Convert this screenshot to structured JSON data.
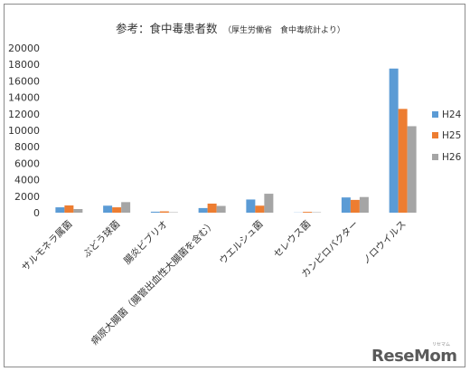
{
  "chart_data": {
    "type": "bar",
    "title": "参考：食中毒患者数",
    "subtitle": "（厚生労働省　食中毒統計より）",
    "categories": [
      "サルモネラ属菌",
      "ぶどう球菌",
      "腸炎ビブリオ",
      "病原大腸菌（腸管出血性大腸菌を含む）",
      "ウエルシュ菌",
      "セレウス菌",
      "カンピロバクター",
      "ノロウイルス"
    ],
    "series": [
      {
        "name": "H24",
        "color": "#5b9bd5",
        "values": [
          650,
          850,
          120,
          560,
          1600,
          20,
          1850,
          17500
        ]
      },
      {
        "name": "H25",
        "color": "#ed7d31",
        "values": [
          880,
          650,
          160,
          1100,
          850,
          100,
          1550,
          12600
        ]
      },
      {
        "name": "H26",
        "color": "#a5a5a5",
        "values": [
          440,
          1280,
          50,
          820,
          2300,
          50,
          1900,
          10500
        ]
      }
    ],
    "ylim": [
      0,
      20000
    ],
    "yticks": [
      "0",
      "2000",
      "4000",
      "6000",
      "8000",
      "10000",
      "12000",
      "14000",
      "16000",
      "18000",
      "20000"
    ],
    "grid": false,
    "legend_position": "right"
  },
  "watermark": {
    "text": "ReseMom",
    "sub": "リセマム"
  }
}
